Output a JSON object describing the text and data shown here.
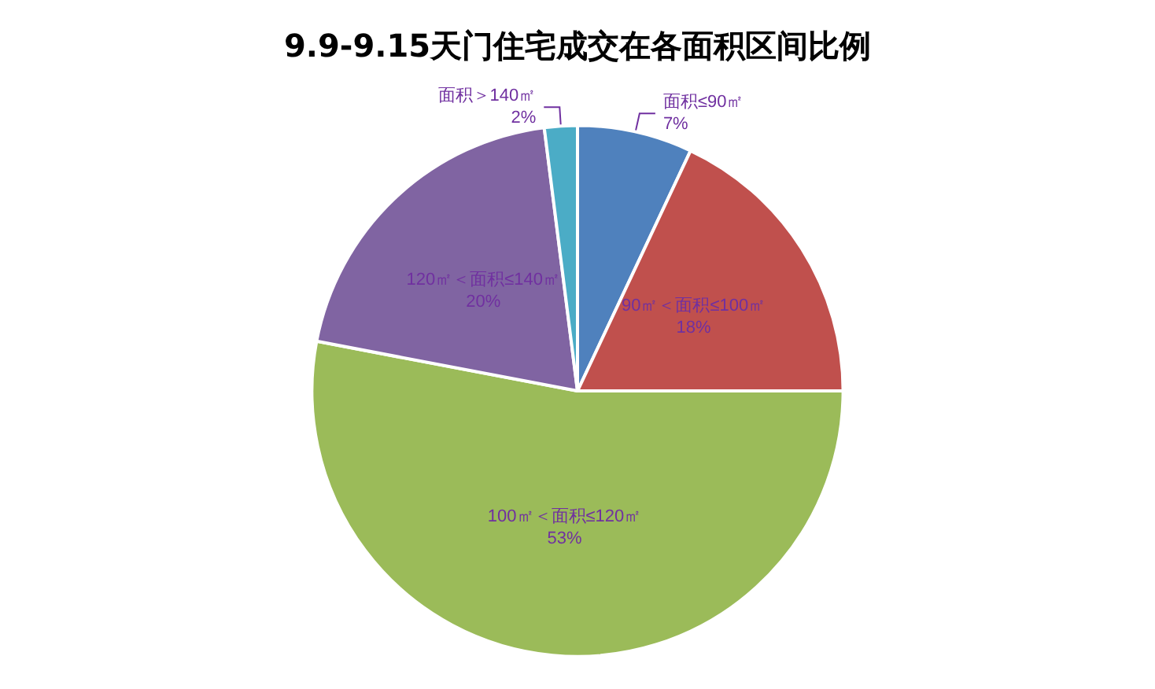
{
  "chart_data": {
    "type": "pie",
    "title": "9.9-9.15天门住宅成交在各面积区间比例",
    "categories": [
      "面积≤90㎡",
      "90㎡＜面积≤100㎡",
      "100㎡＜面积≤120㎡",
      "120㎡＜面积≤140㎡",
      "面积＞140㎡"
    ],
    "values": [
      7,
      18,
      53,
      20,
      2
    ],
    "value_labels": [
      "7%",
      "18%",
      "53%",
      "20%",
      "2%"
    ],
    "colors": [
      "#4f81bd",
      "#c0504d",
      "#9bbb59",
      "#8064a2",
      "#4bacc6"
    ],
    "legend": false
  }
}
